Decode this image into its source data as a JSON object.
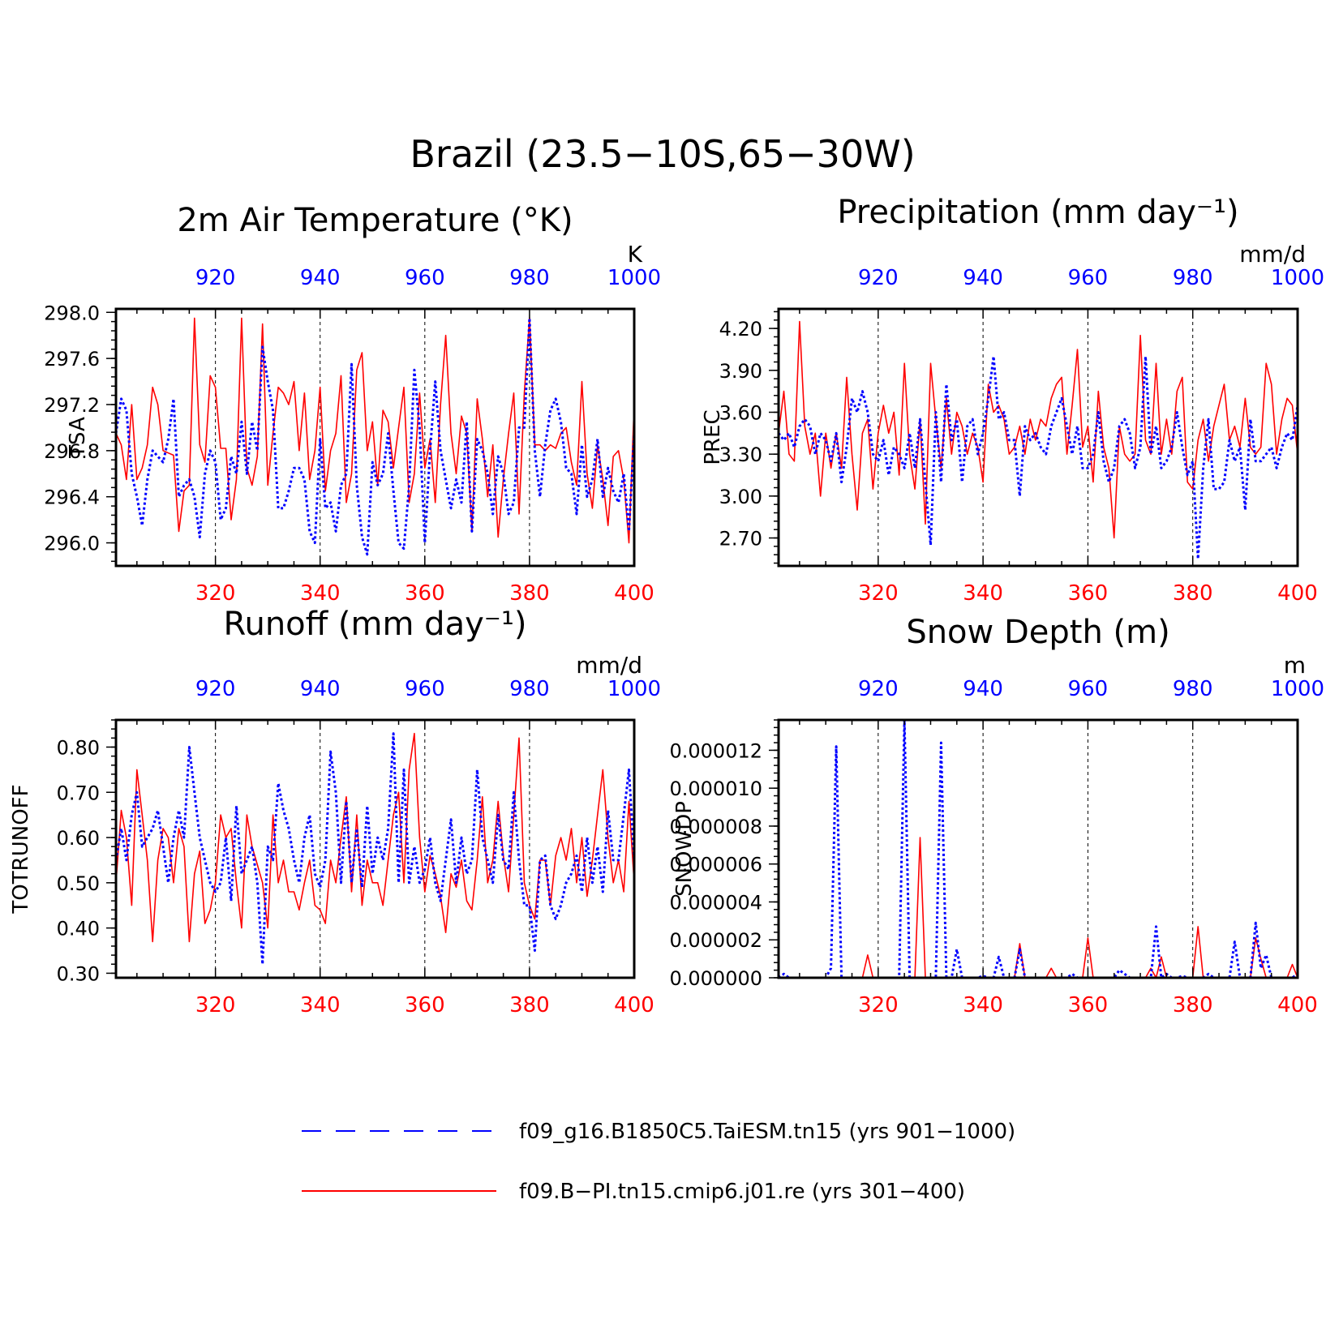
{
  "figure": {
    "title": "Brazil (23.5−10S,65−30W)",
    "legend": {
      "position": "bottom-center",
      "entries": [
        {
          "label": "f09_g16.B1850C5.TaiESM.tn15 (yrs 901−1000)",
          "color": "#0000ff",
          "style": "dashed"
        },
        {
          "label": "f09.B−PI.tn15.cmip6.j01.re (yrs 301−400)",
          "color": "#ff0000",
          "style": "solid"
        }
      ]
    }
  },
  "chart_data": [
    {
      "type": "line",
      "title": "2m Air Temperature (°K)",
      "ylabel": "TSA",
      "units": "K",
      "ylim": [
        295.8,
        298.03
      ],
      "yticks": [
        "296.0",
        "296.4",
        "296.8",
        "297.2",
        "297.6",
        "298.0"
      ],
      "bottom_axis": {
        "range": [
          301,
          400
        ],
        "ticks": [
          "320",
          "340",
          "360",
          "380",
          "400"
        ],
        "color": "#ff0000"
      },
      "top_axis": {
        "range": [
          901,
          1000
        ],
        "ticks": [
          "920",
          "940",
          "960",
          "980",
          "1000"
        ],
        "color": "#0000ff"
      },
      "grid": "vertical dashed at major ticks",
      "series": [
        {
          "name": "f09.B−PI.tn15.cmip6.j01.re (yrs 301−400)",
          "color": "#ff0000",
          "style": "solid",
          "x_start": 301,
          "values": [
            296.95,
            296.85,
            296.55,
            297.2,
            296.55,
            296.65,
            296.85,
            297.35,
            297.2,
            296.8,
            296.78,
            296.76,
            296.1,
            296.45,
            296.5,
            297.95,
            296.85,
            296.7,
            297.45,
            297.35,
            296.82,
            296.82,
            296.2,
            296.55,
            297.95,
            296.65,
            296.5,
            296.75,
            297.9,
            296.5,
            296.95,
            297.35,
            297.3,
            297.2,
            297.4,
            296.8,
            297.3,
            296.55,
            296.8,
            297.35,
            296.45,
            296.8,
            296.95,
            297.45,
            296.35,
            296.6,
            297.5,
            297.65,
            296.8,
            297.05,
            296.5,
            297.15,
            297.05,
            296.65,
            297.0,
            297.35,
            296.35,
            296.6,
            297.3,
            296.65,
            296.9,
            296.35,
            297.2,
            297.8,
            296.95,
            296.6,
            297.1,
            296.95,
            296.1,
            297.25,
            296.9,
            296.4,
            296.85,
            296.05,
            296.55,
            296.95,
            297.3,
            296.25,
            297.3,
            297.95,
            296.85,
            296.85,
            296.8,
            296.85,
            296.82,
            296.95,
            297.0,
            296.7,
            296.5,
            297.4,
            296.6,
            296.3,
            296.85,
            296.55,
            296.15,
            296.75,
            296.8,
            296.55,
            296.0,
            297.2
          ]
        },
        {
          "name": "f09_g16.B1850C5.TaiESM.tn15 (yrs 901−1000)",
          "color": "#0000ff",
          "style": "dashed",
          "x_start": 901,
          "values": [
            296.95,
            297.25,
            297.15,
            296.6,
            296.4,
            296.15,
            296.55,
            296.8,
            296.75,
            296.7,
            296.9,
            297.25,
            296.4,
            296.5,
            296.55,
            296.4,
            296.05,
            296.6,
            296.8,
            296.7,
            296.2,
            296.3,
            296.75,
            296.6,
            297.05,
            296.6,
            297.05,
            296.8,
            297.7,
            297.4,
            297.15,
            296.3,
            296.3,
            296.45,
            296.65,
            296.65,
            296.55,
            296.1,
            296.0,
            296.9,
            296.3,
            296.35,
            296.1,
            296.5,
            296.6,
            297.55,
            296.5,
            296.05,
            295.9,
            296.7,
            296.5,
            296.6,
            296.95,
            296.45,
            296.0,
            295.95,
            296.5,
            297.5,
            297.0,
            296.0,
            296.8,
            297.4,
            296.8,
            296.55,
            296.3,
            296.55,
            296.35,
            297.05,
            296.1,
            296.9,
            296.8,
            296.6,
            296.25,
            296.75,
            296.6,
            296.25,
            296.35,
            297.0,
            297.0,
            297.95,
            296.8,
            296.4,
            296.85,
            297.15,
            297.25,
            297.05,
            296.65,
            296.6,
            296.25,
            296.85,
            296.4,
            296.55,
            296.9,
            296.4,
            296.65,
            296.45,
            296.35,
            296.6,
            296.1,
            296.95
          ]
        }
      ]
    },
    {
      "type": "line",
      "title": "Precipitation (mm day⁻¹)",
      "ylabel": "PREC",
      "units": "mm/d",
      "ylim": [
        2.5,
        4.34
      ],
      "yticks": [
        "2.70",
        "3.00",
        "3.30",
        "3.60",
        "3.90",
        "4.20"
      ],
      "bottom_axis": {
        "range": [
          301,
          400
        ],
        "ticks": [
          "320",
          "340",
          "360",
          "380",
          "400"
        ],
        "color": "#ff0000"
      },
      "top_axis": {
        "range": [
          901,
          1000
        ],
        "ticks": [
          "920",
          "940",
          "960",
          "980",
          "1000"
        ],
        "color": "#0000ff"
      },
      "grid": "vertical dashed at major ticks",
      "series": [
        {
          "name": "f09.B−PI.tn15.cmip6.j01.re (yrs 301−400)",
          "color": "#ff0000",
          "style": "solid",
          "x_start": 301,
          "values": [
            3.45,
            3.75,
            3.3,
            3.25,
            4.25,
            3.5,
            3.3,
            3.45,
            3.0,
            3.45,
            3.2,
            3.45,
            3.2,
            3.85,
            3.3,
            2.9,
            3.45,
            3.55,
            3.05,
            3.45,
            3.65,
            3.45,
            3.6,
            3.15,
            3.95,
            3.3,
            3.05,
            3.55,
            2.8,
            3.95,
            3.55,
            3.2,
            3.7,
            3.3,
            3.6,
            3.5,
            3.3,
            3.45,
            3.35,
            3.1,
            3.8,
            3.6,
            3.65,
            3.55,
            3.3,
            3.35,
            3.5,
            3.3,
            3.55,
            3.4,
            3.55,
            3.5,
            3.7,
            3.8,
            3.85,
            3.3,
            3.65,
            4.05,
            3.35,
            3.5,
            3.1,
            3.75,
            3.35,
            3.2,
            2.7,
            3.5,
            3.3,
            3.25,
            3.3,
            4.15,
            3.4,
            3.3,
            3.95,
            3.3,
            3.55,
            3.3,
            3.75,
            3.85,
            3.1,
            3.05,
            3.4,
            3.55,
            3.25,
            3.5,
            3.65,
            3.8,
            3.4,
            3.5,
            3.35,
            3.7,
            3.35,
            3.3,
            3.35,
            3.95,
            3.8,
            3.3,
            3.55,
            3.7,
            3.65,
            3.3
          ]
        },
        {
          "name": "f09_g16.B1850C5.TaiESM.tn15 (yrs 901−1000)",
          "color": "#0000ff",
          "style": "dashed",
          "x_start": 901,
          "values": [
            3.45,
            3.4,
            3.45,
            3.35,
            3.5,
            3.55,
            3.5,
            3.3,
            3.45,
            3.4,
            3.25,
            3.45,
            3.1,
            3.35,
            3.7,
            3.6,
            3.75,
            3.6,
            3.3,
            3.25,
            3.4,
            3.15,
            3.35,
            3.3,
            3.2,
            3.45,
            3.2,
            3.55,
            3.1,
            2.65,
            3.6,
            3.1,
            3.8,
            3.4,
            3.55,
            3.1,
            3.5,
            3.55,
            3.3,
            3.45,
            3.7,
            4.0,
            3.55,
            3.6,
            3.4,
            3.4,
            3.0,
            3.5,
            3.4,
            3.45,
            3.35,
            3.3,
            3.5,
            3.6,
            3.7,
            3.5,
            3.3,
            3.5,
            3.2,
            3.2,
            3.3,
            3.6,
            3.25,
            3.1,
            3.2,
            3.5,
            3.55,
            3.45,
            3.2,
            3.35,
            4.0,
            3.3,
            3.5,
            3.2,
            3.25,
            3.35,
            3.6,
            3.35,
            3.15,
            3.25,
            2.55,
            3.2,
            3.55,
            3.05,
            3.05,
            3.1,
            3.4,
            3.25,
            3.35,
            2.9,
            3.55,
            3.25,
            3.25,
            3.3,
            3.35,
            3.2,
            3.35,
            3.45,
            3.4,
            3.65
          ]
        }
      ]
    },
    {
      "type": "line",
      "title": "Runoff (mm day⁻¹)",
      "ylabel": "TOTRUNOFF",
      "units": "mm/d",
      "ylim": [
        0.29,
        0.86
      ],
      "yticks": [
        "0.30",
        "0.40",
        "0.50",
        "0.60",
        "0.70",
        "0.80"
      ],
      "bottom_axis": {
        "range": [
          301,
          400
        ],
        "ticks": [
          "320",
          "340",
          "360",
          "380",
          "400"
        ],
        "color": "#ff0000"
      },
      "top_axis": {
        "range": [
          901,
          1000
        ],
        "ticks": [
          "920",
          "940",
          "960",
          "980",
          "1000"
        ],
        "color": "#0000ff"
      },
      "grid": "vertical dashed at major ticks",
      "series": [
        {
          "name": "f09.B−PI.tn15.cmip6.j01.re (yrs 301−400)",
          "color": "#ff0000",
          "style": "solid",
          "x_start": 301,
          "values": [
            0.5,
            0.66,
            0.6,
            0.45,
            0.75,
            0.65,
            0.55,
            0.37,
            0.55,
            0.62,
            0.6,
            0.5,
            0.62,
            0.58,
            0.37,
            0.52,
            0.57,
            0.41,
            0.44,
            0.5,
            0.65,
            0.6,
            0.62,
            0.5,
            0.4,
            0.65,
            0.58,
            0.54,
            0.5,
            0.4,
            0.65,
            0.5,
            0.55,
            0.48,
            0.48,
            0.44,
            0.5,
            0.55,
            0.45,
            0.44,
            0.41,
            0.55,
            0.5,
            0.6,
            0.69,
            0.48,
            0.65,
            0.45,
            0.55,
            0.5,
            0.5,
            0.45,
            0.55,
            0.65,
            0.7,
            0.5,
            0.75,
            0.83,
            0.6,
            0.48,
            0.56,
            0.52,
            0.47,
            0.39,
            0.52,
            0.49,
            0.55,
            0.46,
            0.44,
            0.55,
            0.69,
            0.5,
            0.55,
            0.68,
            0.56,
            0.48,
            0.65,
            0.82,
            0.5,
            0.45,
            0.42,
            0.55,
            0.55,
            0.45,
            0.56,
            0.6,
            0.55,
            0.62,
            0.5,
            0.6,
            0.47,
            0.55,
            0.65,
            0.75,
            0.6,
            0.5,
            0.55,
            0.48,
            0.68,
            0.5
          ]
        },
        {
          "name": "f09_g16.B1850C5.TaiESM.tn15 (yrs 901−1000)",
          "color": "#0000ff",
          "style": "dashed",
          "x_start": 901,
          "values": [
            0.55,
            0.62,
            0.55,
            0.65,
            0.7,
            0.58,
            0.6,
            0.62,
            0.66,
            0.58,
            0.5,
            0.6,
            0.66,
            0.6,
            0.8,
            0.7,
            0.6,
            0.55,
            0.5,
            0.48,
            0.5,
            0.6,
            0.46,
            0.67,
            0.52,
            0.55,
            0.58,
            0.5,
            0.32,
            0.58,
            0.55,
            0.72,
            0.66,
            0.62,
            0.55,
            0.5,
            0.6,
            0.65,
            0.52,
            0.49,
            0.55,
            0.79,
            0.7,
            0.5,
            0.68,
            0.5,
            0.62,
            0.49,
            0.67,
            0.52,
            0.6,
            0.55,
            0.62,
            0.83,
            0.5,
            0.75,
            0.5,
            0.58,
            0.5,
            0.53,
            0.6,
            0.5,
            0.46,
            0.55,
            0.64,
            0.5,
            0.6,
            0.52,
            0.55,
            0.75,
            0.6,
            0.55,
            0.5,
            0.65,
            0.55,
            0.53,
            0.7,
            0.55,
            0.45,
            0.45,
            0.35,
            0.55,
            0.56,
            0.45,
            0.42,
            0.45,
            0.5,
            0.52,
            0.56,
            0.48,
            0.6,
            0.5,
            0.58,
            0.48,
            0.66,
            0.55,
            0.55,
            0.65,
            0.75,
            0.55
          ]
        }
      ]
    },
    {
      "type": "line",
      "title": "Snow Depth (m)",
      "ylabel": "SNOWDP",
      "units": "m",
      "ylim": [
        0,
        1.36e-05
      ],
      "yticks": [
        "0.000000",
        "0.000002",
        "0.000004",
        "0.000006",
        "0.000008",
        "0.000010",
        "0.000012"
      ],
      "bottom_axis": {
        "range": [
          301,
          400
        ],
        "ticks": [
          "320",
          "340",
          "360",
          "380",
          "400"
        ],
        "color": "#ff0000"
      },
      "top_axis": {
        "range": [
          901,
          1000
        ],
        "ticks": [
          "920",
          "940",
          "960",
          "980",
          "1000"
        ],
        "color": "#0000ff"
      },
      "grid": "vertical dashed at major ticks",
      "series": [
        {
          "name": "f09.B−PI.tn15.cmip6.j01.re (yrs 301−400)",
          "color": "#ff0000",
          "style": "solid",
          "x_start": 301,
          "values": [
            0,
            0,
            0,
            0,
            0,
            0,
            0,
            0,
            0,
            0,
            0,
            0,
            0,
            0,
            0,
            0,
            0,
            1.2e-06,
            0,
            0,
            0,
            0,
            0,
            0,
            0,
            0,
            0,
            7.4e-06,
            0,
            0,
            0,
            0,
            0,
            0,
            0,
            0,
            0,
            0,
            0,
            0,
            0,
            0,
            0,
            0,
            0,
            0,
            1.8e-06,
            0,
            0,
            0,
            0,
            0,
            5e-07,
            0,
            0,
            0,
            0,
            0,
            0,
            2.1e-06,
            0,
            0,
            0,
            0,
            0,
            0,
            0,
            0,
            0,
            0,
            0,
            5e-07,
            0,
            1.1e-06,
            0,
            0,
            0,
            0,
            0,
            0,
            2.7e-06,
            0,
            0,
            0,
            0,
            0,
            0,
            0,
            0,
            0,
            0,
            2.1e-06,
            1e-06,
            0,
            0,
            0,
            0,
            0,
            7e-07,
            0
          ]
        },
        {
          "name": "f09_g16.B1850C5.TaiESM.tn15 (yrs 901−1000)",
          "color": "#0000ff",
          "style": "dashed",
          "x_start": 901,
          "values": [
            0,
            2e-07,
            0,
            0,
            0,
            0,
            0,
            0,
            0,
            0,
            5e-07,
            1.22e-05,
            0,
            0,
            0,
            0,
            0,
            0,
            0,
            0,
            0,
            0,
            0,
            0,
            1.36e-05,
            0,
            0,
            0,
            0,
            0,
            0,
            1.24e-05,
            0,
            0,
            1.5e-06,
            0,
            0,
            0,
            0,
            1e-07,
            0,
            0,
            1.1e-06,
            0,
            0,
            0,
            1.5e-06,
            0,
            0,
            0,
            0,
            0,
            0,
            0,
            0,
            0,
            2e-07,
            0,
            0,
            0,
            0,
            0,
            0,
            0,
            0,
            4e-07,
            2e-07,
            0,
            0,
            0,
            0,
            0,
            2.7e-06,
            0,
            2e-07,
            0,
            0,
            1e-07,
            0,
            0,
            0,
            0,
            2e-07,
            0,
            0,
            0,
            0,
            1.9e-06,
            0,
            0,
            0,
            2.9e-06,
            5e-07,
            1.2e-06,
            0,
            0,
            0,
            0,
            0,
            2e-07
          ]
        }
      ]
    }
  ]
}
